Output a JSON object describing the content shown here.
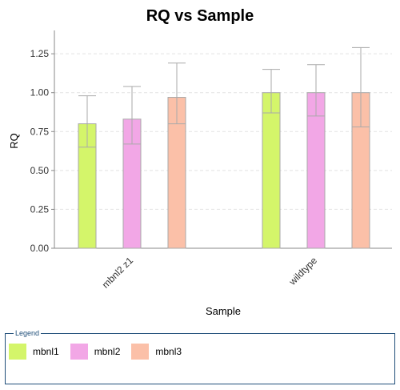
{
  "chart_data": {
    "type": "bar",
    "title": "RQ vs Sample",
    "xlabel": "Sample",
    "ylabel": "RQ",
    "ylim": [
      0,
      1.4
    ],
    "yticks": [
      "0.00",
      "0.25",
      "0.50",
      "0.75",
      "1.00",
      "1.25"
    ],
    "grid": true,
    "categories": [
      "mbnl2 z1",
      "wildtype"
    ],
    "series": [
      {
        "name": "mbnl1",
        "color": "#d4f56a",
        "values": [
          0.8,
          1.0
        ],
        "error_low": [
          0.65,
          0.87
        ],
        "error_high": [
          0.98,
          1.15
        ]
      },
      {
        "name": "mbnl2",
        "color": "#f2a7e6",
        "values": [
          0.83,
          1.0
        ],
        "error_low": [
          0.67,
          0.85
        ],
        "error_high": [
          1.04,
          1.18
        ]
      },
      {
        "name": "mbnl3",
        "color": "#fbc0a8",
        "values": [
          0.97,
          1.0
        ],
        "error_low": [
          0.8,
          0.78
        ],
        "error_high": [
          1.19,
          1.29
        ]
      }
    ]
  },
  "legend": {
    "title": "Legend"
  }
}
